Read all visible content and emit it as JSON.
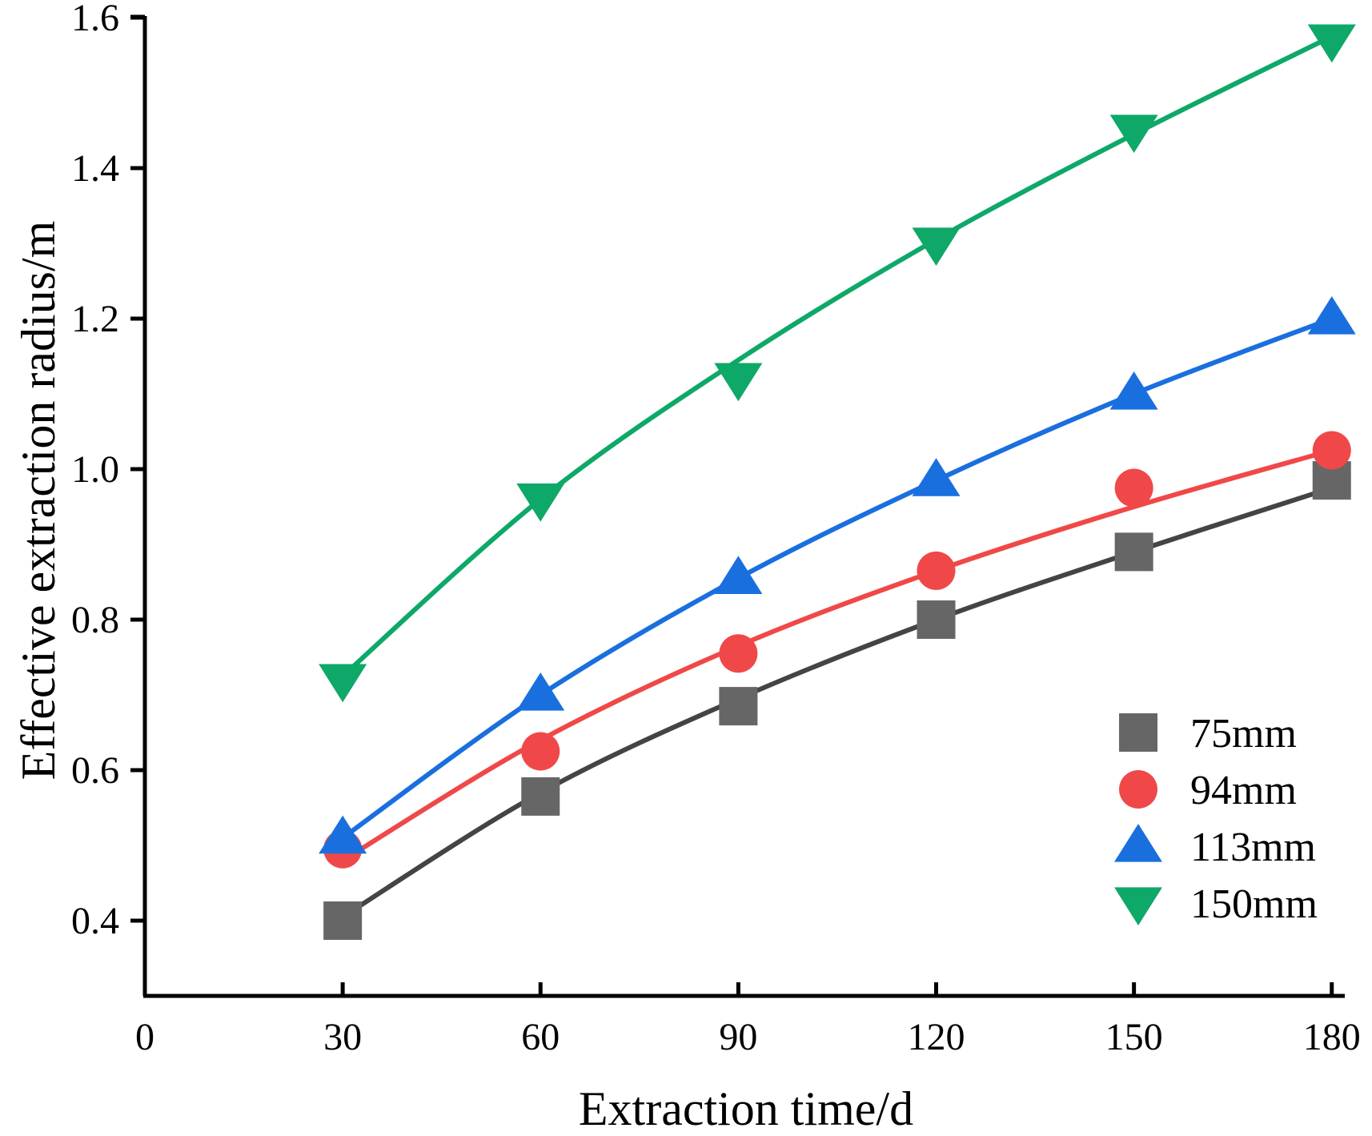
{
  "chart_data": {
    "type": "scatter",
    "title": "",
    "xlabel": "Extraction time/d",
    "ylabel": "Effective extraction radius/m",
    "xlim": [
      0,
      182
    ],
    "ylim": [
      0.3,
      1.62
    ],
    "xticks": [
      0,
      30,
      60,
      90,
      120,
      150,
      180
    ],
    "yticks": [
      0.4,
      0.6,
      0.8,
      1.0,
      1.2,
      1.4,
      1.6
    ],
    "ytick_labels": [
      "0.4",
      "0.6",
      "0.8",
      "1.0",
      "1.2",
      "1.4",
      "1.6"
    ],
    "grid": false,
    "legend_position": "bottom-right",
    "x": [
      30,
      60,
      90,
      120,
      150,
      180
    ],
    "series": [
      {
        "name": "75mm",
        "marker": "square",
        "color": "#666666",
        "line_color": "#444444",
        "values": [
          0.4,
          0.565,
          0.685,
          0.8,
          0.89,
          0.985
        ],
        "fit": [
          0.405,
          0.57,
          0.695,
          0.8,
          0.89,
          0.975
        ]
      },
      {
        "name": "94mm",
        "marker": "circle",
        "color": "#f04848",
        "line_color": "#f04848",
        "values": [
          0.495,
          0.625,
          0.755,
          0.865,
          0.975,
          1.025
        ],
        "fit": [
          0.48,
          0.64,
          0.765,
          0.865,
          0.95,
          1.025
        ]
      },
      {
        "name": "113mm",
        "marker": "triangle-up",
        "color": "#1a6fdf",
        "line_color": "#1a6fdf",
        "values": [
          0.51,
          0.7,
          0.855,
          0.985,
          1.1,
          1.2
        ],
        "fit": [
          0.51,
          0.7,
          0.855,
          0.985,
          1.1,
          1.2
        ]
      },
      {
        "name": "150mm",
        "marker": "triangle-down",
        "color": "#0ea868",
        "line_color": "#0ea868",
        "values": [
          0.72,
          0.96,
          1.12,
          1.3,
          1.45,
          1.57
        ],
        "fit": [
          0.725,
          0.96,
          1.145,
          1.305,
          1.445,
          1.575
        ]
      }
    ]
  }
}
